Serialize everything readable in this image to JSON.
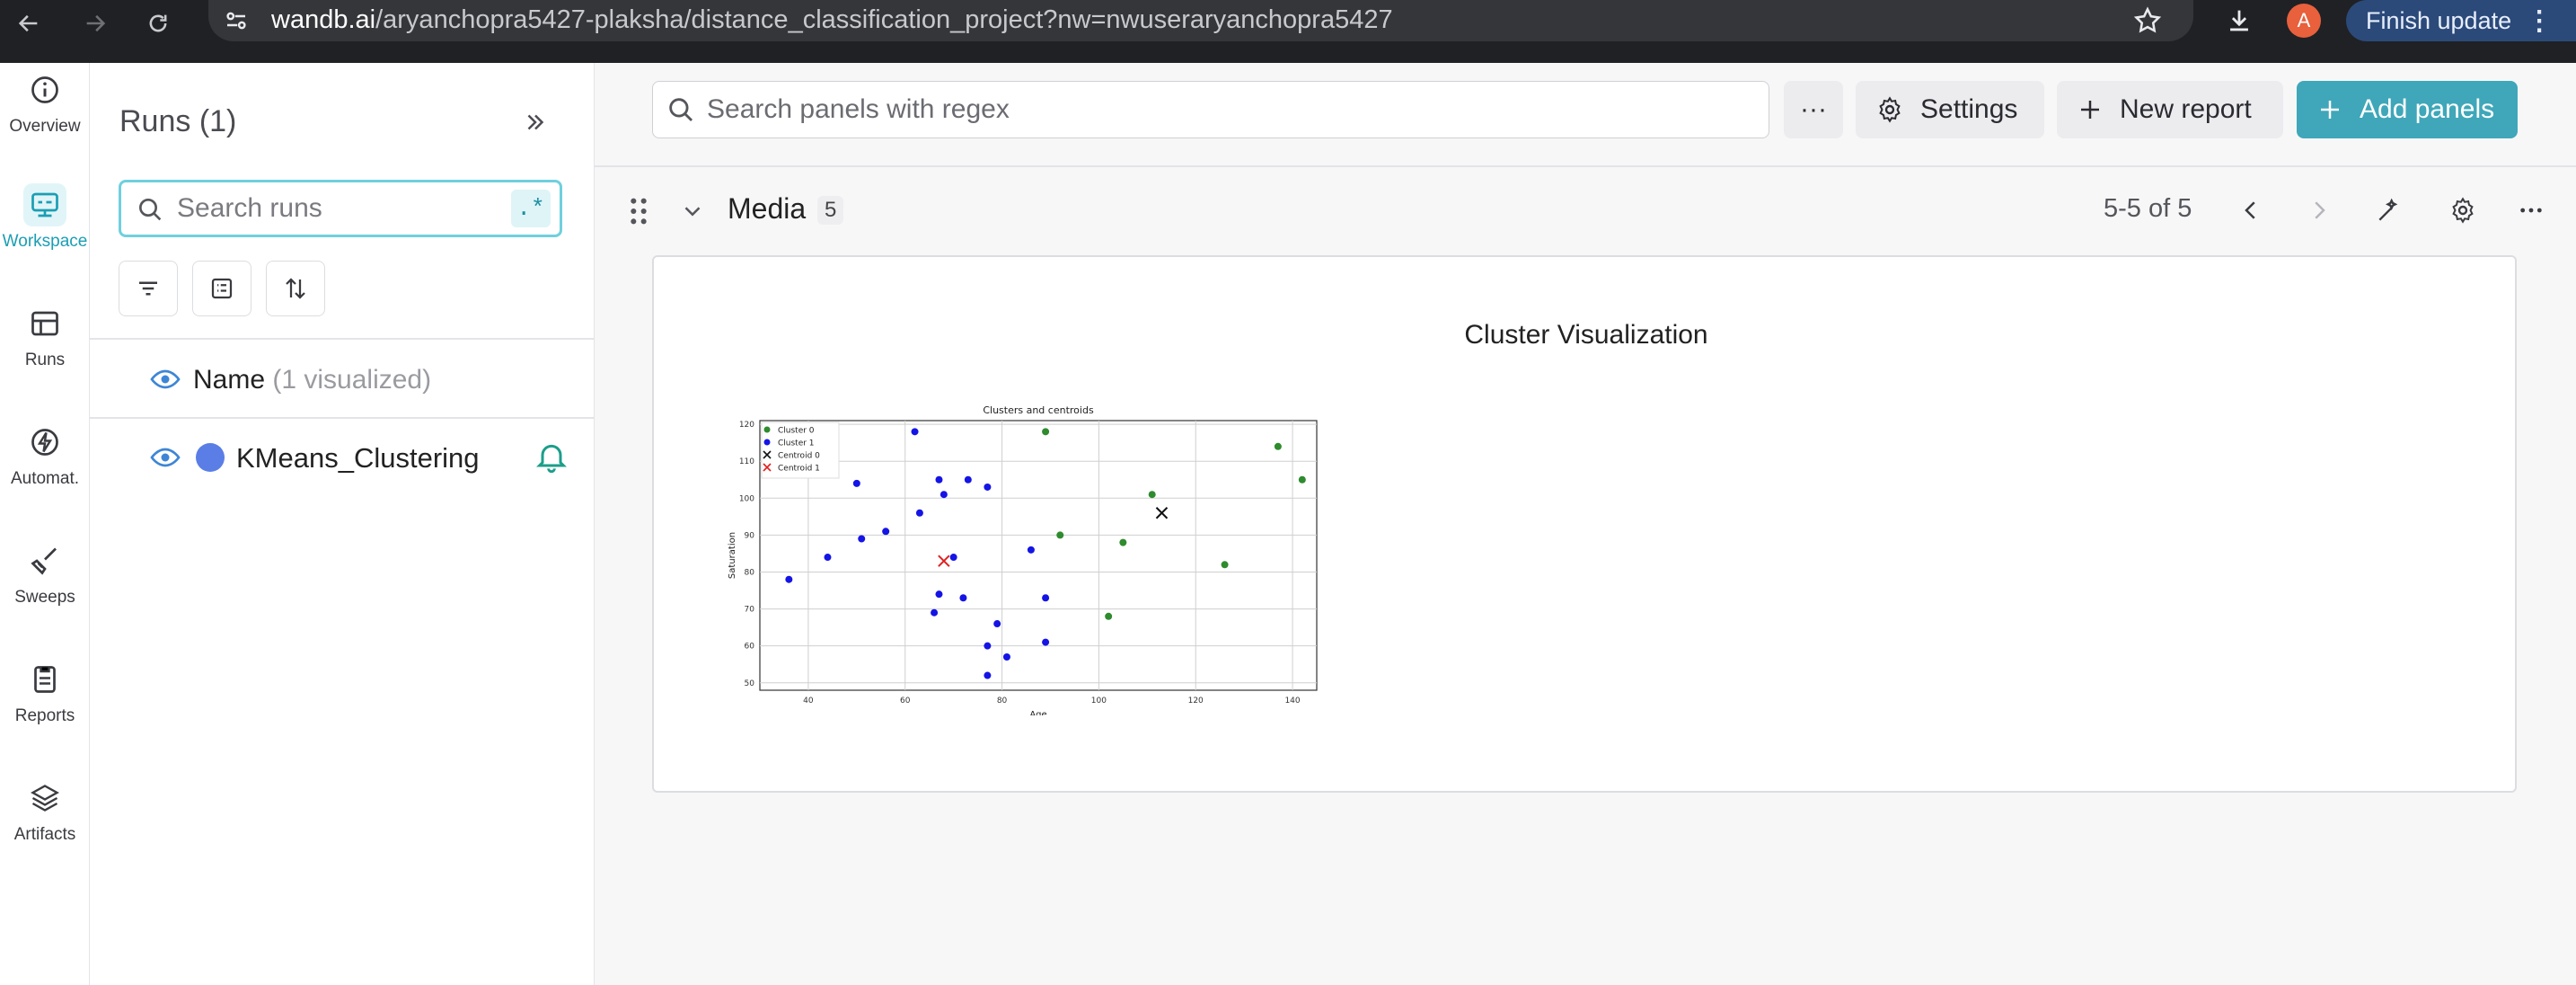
{
  "browser": {
    "url_host": "wandb.ai",
    "url_path": "/aryanchopra5427-plaksha/distance_classification_project?nw=nwuseraryanchopra5427",
    "profile_initial": "A",
    "finish_update_label": "Finish update"
  },
  "rail": {
    "items": [
      {
        "label": "Overview",
        "icon": "info-icon"
      },
      {
        "label": "Workspace",
        "icon": "workspace-icon"
      },
      {
        "label": "Runs",
        "icon": "table-icon"
      },
      {
        "label": "Automat.",
        "icon": "automation-icon"
      },
      {
        "label": "Sweeps",
        "icon": "broom-icon"
      },
      {
        "label": "Reports",
        "icon": "report-icon"
      },
      {
        "label": "Artifacts",
        "icon": "layers-icon"
      }
    ],
    "active": "Workspace"
  },
  "runs_panel": {
    "title": "Runs (1)",
    "search_placeholder": "Search runs",
    "regex_label": ".*",
    "name_header": "Name",
    "name_header_note": "(1 visualized)",
    "runs": [
      {
        "name": "KMeans_Clustering",
        "color": "#5a7ee6"
      }
    ]
  },
  "toolbar": {
    "search_placeholder": "Search panels with regex",
    "more_label": "···",
    "settings_label": "Settings",
    "new_report_label": "New report",
    "add_panels_label": "Add panels"
  },
  "section": {
    "name": "Media",
    "count": "5",
    "paging": "5-5 of 5"
  },
  "panel": {
    "title": "Cluster Visualization"
  },
  "chart_data": {
    "type": "scatter",
    "title": "Clusters and centroids",
    "xlabel": "Age",
    "ylabel": "Saturation",
    "xlim": [
      30,
      145
    ],
    "ylim": [
      48,
      121
    ],
    "xticks": [
      40,
      60,
      80,
      100,
      120,
      140
    ],
    "yticks": [
      50,
      60,
      70,
      80,
      90,
      100,
      110,
      120
    ],
    "grid": true,
    "legend_position": "top-left",
    "series": [
      {
        "name": "Cluster 0",
        "color": "#2e8b2e",
        "marker": "dot",
        "points": [
          [
            89,
            118
          ],
          [
            137,
            114
          ],
          [
            142,
            105
          ],
          [
            111,
            101
          ],
          [
            92,
            90
          ],
          [
            105,
            88
          ],
          [
            126,
            82
          ],
          [
            102,
            68
          ]
        ]
      },
      {
        "name": "Cluster 1",
        "color": "#1414e6",
        "marker": "dot",
        "points": [
          [
            62,
            118
          ],
          [
            50,
            104
          ],
          [
            67,
            105
          ],
          [
            73,
            105
          ],
          [
            77,
            103
          ],
          [
            68,
            101
          ],
          [
            63,
            96
          ],
          [
            56,
            91
          ],
          [
            51,
            89
          ],
          [
            44,
            84
          ],
          [
            70,
            84
          ],
          [
            86,
            86
          ],
          [
            36,
            78
          ],
          [
            67,
            74
          ],
          [
            72,
            73
          ],
          [
            89,
            73
          ],
          [
            66,
            69
          ],
          [
            79,
            66
          ],
          [
            77,
            60
          ],
          [
            89,
            61
          ],
          [
            81,
            57
          ],
          [
            77,
            52
          ]
        ]
      },
      {
        "name": "Centroid 0",
        "color": "#111111",
        "marker": "x",
        "points": [
          [
            113,
            96
          ]
        ]
      },
      {
        "name": "Centroid 1",
        "color": "#e02020",
        "marker": "x",
        "points": [
          [
            68,
            83
          ]
        ]
      }
    ]
  }
}
